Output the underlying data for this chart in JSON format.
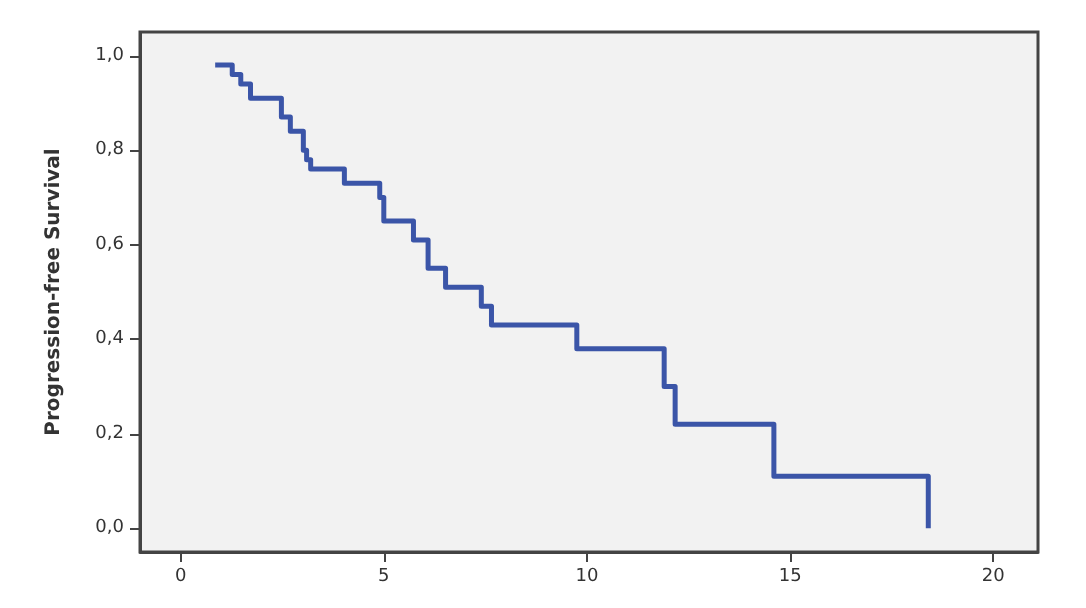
{
  "chart_data": {
    "type": "step",
    "ylabel": "Progression-free Survival",
    "x": [
      0.85,
      1.27,
      1.48,
      1.72,
      2.48,
      2.7,
      3.02,
      3.1,
      3.2,
      4.03,
      4.9,
      5.0,
      5.73,
      6.09,
      6.52,
      7.4,
      7.65,
      9.75,
      11.9,
      12.17,
      14.6,
      18.4
    ],
    "series": [
      {
        "color": "#3b55a8",
        "values": [
          0.98,
          0.96,
          0.94,
          0.91,
          0.87,
          0.84,
          0.8,
          0.78,
          0.76,
          0.73,
          0.7,
          0.65,
          0.61,
          0.55,
          0.51,
          0.47,
          0.43,
          0.38,
          0.3,
          0.22,
          0.11,
          0.0
        ]
      }
    ],
    "xlim": [
      -1,
      21.1
    ],
    "ylim": [
      -0.05,
      1.05
    ],
    "xticks": [
      0,
      5,
      10,
      15,
      20
    ],
    "yticks": [
      {
        "value": 0,
        "label": "0,0"
      },
      {
        "value": 0.2,
        "label": "0,2"
      },
      {
        "value": 0.4,
        "label": "0,4"
      },
      {
        "value": 0.6,
        "label": "0,6"
      },
      {
        "value": 0.8,
        "label": "0,8"
      },
      {
        "value": 1,
        "label": "1,0"
      }
    ],
    "grid": false,
    "marker": "none",
    "line_style": "solid"
  }
}
